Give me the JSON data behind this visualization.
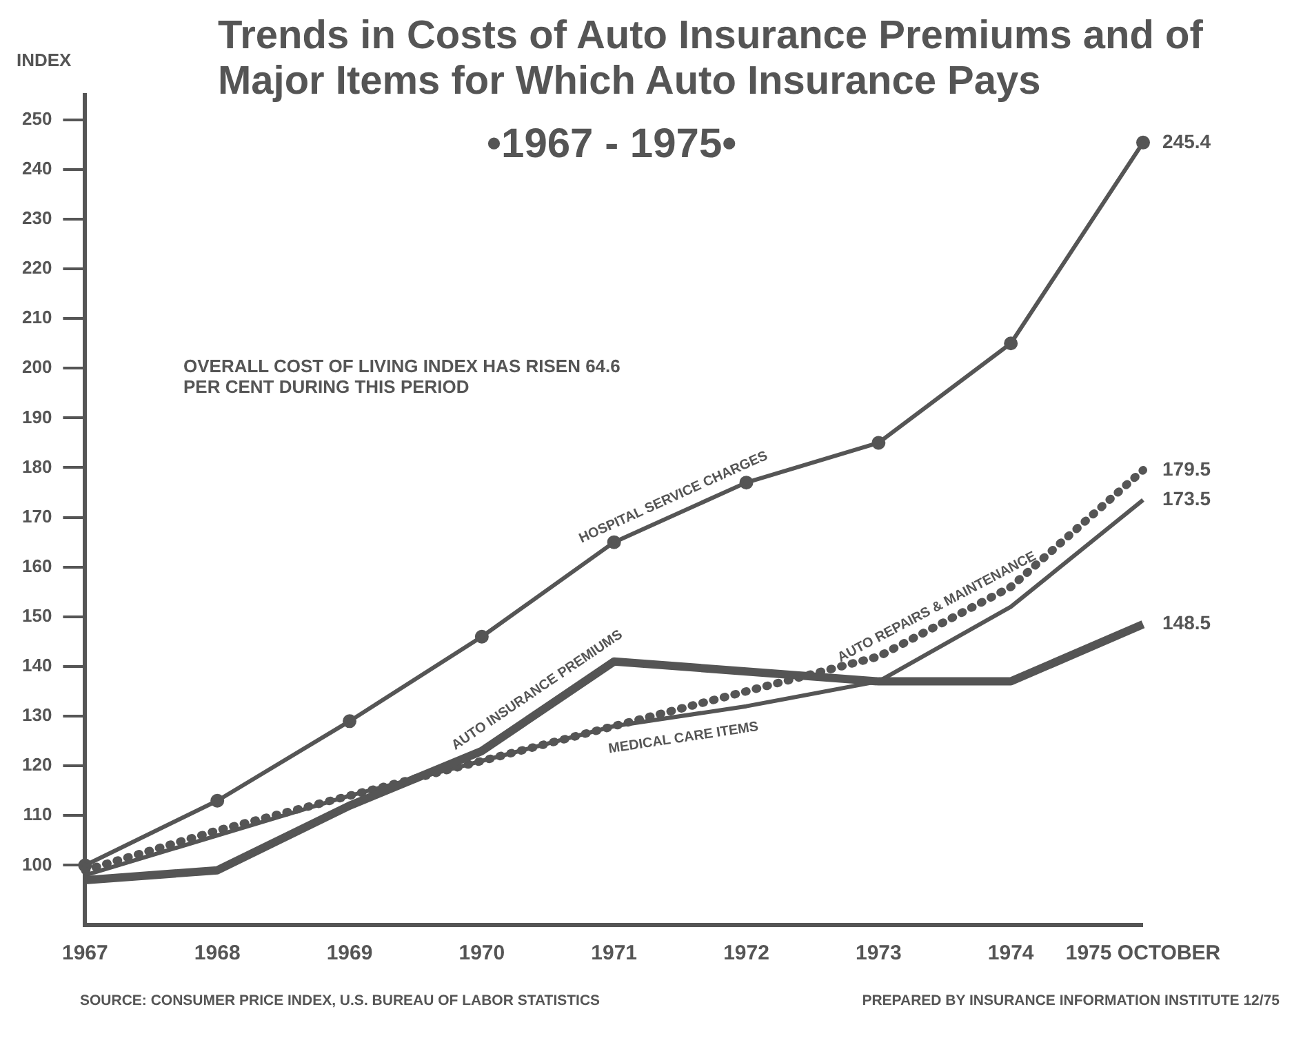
{
  "chart_data": {
    "type": "line",
    "title": "Trends in Costs of Auto Insurance Premiums and of Major Items for Which Auto Insurance Pays",
    "subtitle": "•1967 - 1975•",
    "ylabel": "INDEX",
    "categories": [
      "1967",
      "1968",
      "1969",
      "1970",
      "1971",
      "1972",
      "1973",
      "1974",
      "1975 OCTOBER"
    ],
    "series": [
      {
        "name": "HOSPITAL SERVICE CHARGES",
        "color": "#555555",
        "marker": "circle",
        "line_style": "solid",
        "values": [
          100,
          113,
          129,
          146,
          165,
          177,
          185,
          205,
          245.4
        ],
        "value_labels": [
          null,
          null,
          null,
          null,
          null,
          null,
          null,
          null,
          "245.4"
        ]
      },
      {
        "name": "AUTO INSURANCE PREMIUMS",
        "color": "#555555",
        "marker": "none",
        "line_style": "solid",
        "values": [
          97,
          99,
          112,
          123,
          141,
          139,
          137,
          137,
          148.5
        ],
        "value_labels": [
          null,
          null,
          null,
          null,
          null,
          null,
          null,
          null,
          "148.5"
        ]
      },
      {
        "name": "MEDICAL CARE ITEMS",
        "color": "#555555",
        "marker": "none",
        "line_style": "solid",
        "values": [
          98,
          106,
          114,
          121,
          128,
          132,
          137,
          152,
          173.5
        ],
        "value_labels": [
          null,
          null,
          null,
          null,
          null,
          null,
          null,
          null,
          "173.5"
        ]
      },
      {
        "name": "AUTO REPAIRS & MAINTENANCE",
        "color": "#555555",
        "marker": "none",
        "line_style": "dotted",
        "values": [
          99,
          107,
          114,
          121,
          128,
          135,
          142,
          156,
          179.5
        ],
        "value_labels": [
          null,
          null,
          null,
          null,
          null,
          null,
          null,
          null,
          "179.5"
        ]
      }
    ],
    "ylim": [
      88,
      255
    ],
    "yticks": [
      100,
      110,
      120,
      130,
      140,
      150,
      160,
      170,
      180,
      190,
      200,
      210,
      220,
      230,
      240,
      250
    ],
    "grid": false,
    "legend": false,
    "annotations": [
      "OVERALL COST OF LIVING INDEX HAS RISEN 64.6 PER CENT DURING THIS PERIOD",
      "SOURCE: CONSUMER PRICE INDEX, U.S. BUREAU OF LABOR STATISTICS",
      "PREPARED BY INSURANCE INFORMATION INSTITUTE 12/75"
    ]
  }
}
